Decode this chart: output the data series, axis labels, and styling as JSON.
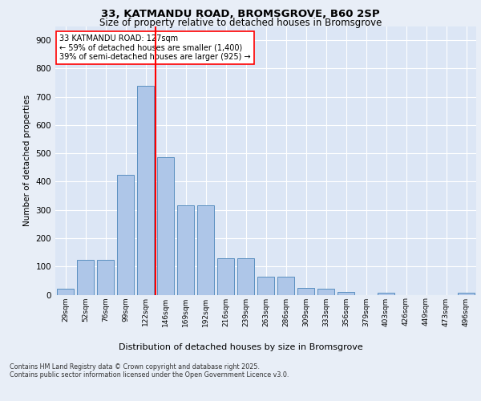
{
  "title_line1": "33, KATMANDU ROAD, BROMSGROVE, B60 2SP",
  "title_line2": "Size of property relative to detached houses in Bromsgrove",
  "xlabel": "Distribution of detached houses by size in Bromsgrove",
  "ylabel": "Number of detached properties",
  "categories": [
    "29sqm",
    "52sqm",
    "76sqm",
    "99sqm",
    "122sqm",
    "146sqm",
    "169sqm",
    "192sqm",
    "216sqm",
    "239sqm",
    "263sqm",
    "286sqm",
    "309sqm",
    "333sqm",
    "356sqm",
    "379sqm",
    "403sqm",
    "426sqm",
    "449sqm",
    "473sqm",
    "496sqm"
  ],
  "values": [
    20,
    122,
    122,
    425,
    740,
    485,
    315,
    315,
    130,
    130,
    65,
    65,
    25,
    20,
    10,
    0,
    8,
    0,
    0,
    0,
    8
  ],
  "bar_color": "#aec6e8",
  "bar_edge_color": "#5a8fc0",
  "vline_x": 4.5,
  "vline_color": "red",
  "annotation_text": "33 KATMANDU ROAD: 127sqm\n← 59% of detached houses are smaller (1,400)\n39% of semi-detached houses are larger (925) →",
  "annotation_box_color": "white",
  "annotation_box_edge": "red",
  "ylim": [
    0,
    950
  ],
  "yticks": [
    0,
    100,
    200,
    300,
    400,
    500,
    600,
    700,
    800,
    900
  ],
  "footer_line1": "Contains HM Land Registry data © Crown copyright and database right 2025.",
  "footer_line2": "Contains public sector information licensed under the Open Government Licence v3.0.",
  "bg_color": "#e8eef7",
  "plot_bg_color": "#dce6f5"
}
